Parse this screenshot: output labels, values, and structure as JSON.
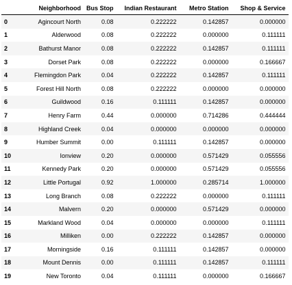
{
  "table": {
    "columns": [
      "",
      "Neighborhood",
      "Bus Stop",
      "Indian Restaurant",
      "Metro Station",
      "Shop & Service"
    ],
    "rows": [
      [
        "0",
        "Agincourt North",
        "0.08",
        "0.222222",
        "0.142857",
        "0.000000"
      ],
      [
        "1",
        "Alderwood",
        "0.08",
        "0.222222",
        "0.000000",
        "0.111111"
      ],
      [
        "2",
        "Bathurst Manor",
        "0.08",
        "0.222222",
        "0.142857",
        "0.111111"
      ],
      [
        "3",
        "Dorset Park",
        "0.08",
        "0.222222",
        "0.000000",
        "0.166667"
      ],
      [
        "4",
        "Flemingdon Park",
        "0.04",
        "0.222222",
        "0.142857",
        "0.111111"
      ],
      [
        "5",
        "Forest Hill North",
        "0.08",
        "0.222222",
        "0.000000",
        "0.000000"
      ],
      [
        "6",
        "Guildwood",
        "0.16",
        "0.111111",
        "0.142857",
        "0.000000"
      ],
      [
        "7",
        "Henry Farm",
        "0.44",
        "0.000000",
        "0.714286",
        "0.444444"
      ],
      [
        "8",
        "Highland Creek",
        "0.04",
        "0.000000",
        "0.000000",
        "0.000000"
      ],
      [
        "9",
        "Humber Summit",
        "0.00",
        "0.111111",
        "0.142857",
        "0.000000"
      ],
      [
        "10",
        "Ionview",
        "0.20",
        "0.000000",
        "0.571429",
        "0.055556"
      ],
      [
        "11",
        "Kennedy Park",
        "0.20",
        "0.000000",
        "0.571429",
        "0.055556"
      ],
      [
        "12",
        "Little Portugal",
        "0.92",
        "1.000000",
        "0.285714",
        "1.000000"
      ],
      [
        "13",
        "Long Branch",
        "0.08",
        "0.222222",
        "0.000000",
        "0.111111"
      ],
      [
        "14",
        "Malvern",
        "0.20",
        "0.000000",
        "0.571429",
        "0.000000"
      ],
      [
        "15",
        "Markland Wood",
        "0.04",
        "0.000000",
        "0.000000",
        "0.111111"
      ],
      [
        "16",
        "Milliken",
        "0.00",
        "0.222222",
        "0.142857",
        "0.000000"
      ],
      [
        "17",
        "Morningside",
        "0.16",
        "0.111111",
        "0.142857",
        "0.000000"
      ],
      [
        "18",
        "Mount Dennis",
        "0.00",
        "0.111111",
        "0.142857",
        "0.111111"
      ],
      [
        "19",
        "New Toronto",
        "0.04",
        "0.111111",
        "0.000000",
        "0.166667"
      ]
    ]
  }
}
